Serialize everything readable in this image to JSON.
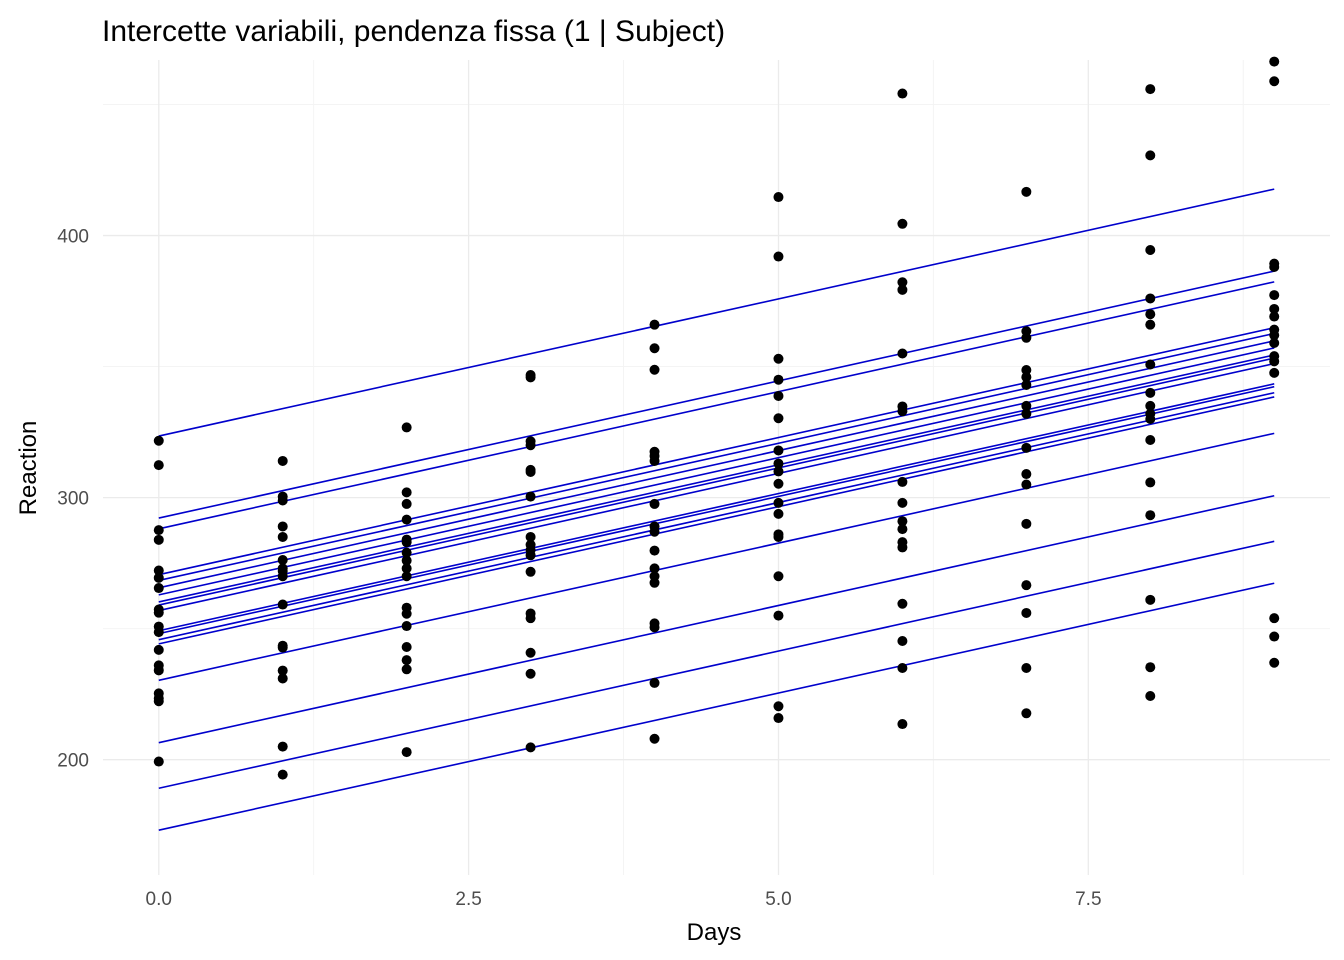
{
  "chart_data": {
    "type": "scatter",
    "title": "Intercette variabili, pendenza fissa (1 | Subject)",
    "xlabel": "Days",
    "ylabel": "Reaction",
    "xlim": [
      -0.45,
      9.45
    ],
    "ylim": [
      156,
      467
    ],
    "x_ticks": [
      0,
      2.5,
      5,
      7.5
    ],
    "x_tick_labels": [
      "0.0",
      "2.5",
      "5.0",
      "7.5"
    ],
    "y_ticks": [
      200,
      300,
      400
    ],
    "y_tick_labels": [
      "200",
      "300",
      "400"
    ],
    "grid": true,
    "legend": "none",
    "colors": {
      "points": "#000000",
      "lines": "#0000cc",
      "grid": "#ebebeb"
    },
    "slope": 10.47,
    "intercepts": [
      323.5,
      292.2,
      288.1,
      270.6,
      268.4,
      265.6,
      262.9,
      260.2,
      259.0,
      256.9,
      249.2,
      248.1,
      245.8,
      244.2,
      230.3,
      206.5,
      189.1,
      173.1
    ],
    "points": [
      [
        0,
        321.7
      ],
      [
        0,
        312.4
      ],
      [
        0,
        287.6
      ],
      [
        0,
        283.9
      ],
      [
        0,
        272.2
      ],
      [
        0,
        269.4
      ],
      [
        0,
        265.5
      ],
      [
        0,
        257.3
      ],
      [
        0,
        256.1
      ],
      [
        0,
        250.8
      ],
      [
        0,
        248.7
      ],
      [
        0,
        241.9
      ],
      [
        0,
        236.0
      ],
      [
        0,
        234.1
      ],
      [
        0,
        225.3
      ],
      [
        0,
        223.4
      ],
      [
        0,
        222.3
      ],
      [
        0,
        199.3
      ],
      [
        1,
        314.0
      ],
      [
        1,
        300.4
      ],
      [
        1,
        298.9
      ],
      [
        1,
        289.0
      ],
      [
        1,
        285.0
      ],
      [
        1,
        276.2
      ],
      [
        1,
        273.0
      ],
      [
        1,
        272.0
      ],
      [
        1,
        270.0
      ],
      [
        1,
        259.2
      ],
      [
        1,
        243.5
      ],
      [
        1,
        242.8
      ],
      [
        1,
        234.0
      ],
      [
        1,
        231.0
      ],
      [
        1,
        205.0
      ],
      [
        1,
        194.3
      ],
      [
        2,
        326.8
      ],
      [
        2,
        302.0
      ],
      [
        2,
        297.6
      ],
      [
        2,
        291.6
      ],
      [
        2,
        284.0
      ],
      [
        2,
        283.0
      ],
      [
        2,
        279.0
      ],
      [
        2,
        276.0
      ],
      [
        2,
        273.0
      ],
      [
        2,
        270.0
      ],
      [
        2,
        258.0
      ],
      [
        2,
        255.7
      ],
      [
        2,
        251.0
      ],
      [
        2,
        243.0
      ],
      [
        2,
        238.0
      ],
      [
        2,
        234.5
      ],
      [
        2,
        202.9
      ],
      [
        3,
        346.8
      ],
      [
        3,
        345.9
      ],
      [
        3,
        321.5
      ],
      [
        3,
        320.0
      ],
      [
        3,
        310.6
      ],
      [
        3,
        309.8
      ],
      [
        3,
        300.4
      ],
      [
        3,
        285.0
      ],
      [
        3,
        282.0
      ],
      [
        3,
        280.0
      ],
      [
        3,
        278.0
      ],
      [
        3,
        271.7
      ],
      [
        3,
        255.8
      ],
      [
        3,
        254.0
      ],
      [
        3,
        240.8
      ],
      [
        3,
        232.8
      ],
      [
        3,
        204.7
      ],
      [
        4,
        366.0
      ],
      [
        4,
        357.0
      ],
      [
        4,
        348.8
      ],
      [
        4,
        317.5
      ],
      [
        4,
        315.9
      ],
      [
        4,
        314.0
      ],
      [
        4,
        297.6
      ],
      [
        4,
        289.0
      ],
      [
        4,
        287.0
      ],
      [
        4,
        279.8
      ],
      [
        4,
        273.0
      ],
      [
        4,
        270.0
      ],
      [
        4,
        267.5
      ],
      [
        4,
        252.0
      ],
      [
        4,
        250.5
      ],
      [
        4,
        229.3
      ],
      [
        4,
        208.0
      ],
      [
        5,
        414.7
      ],
      [
        5,
        392.0
      ],
      [
        5,
        353.0
      ],
      [
        5,
        345.0
      ],
      [
        5,
        338.8
      ],
      [
        5,
        330.3
      ],
      [
        5,
        318.0
      ],
      [
        5,
        313.0
      ],
      [
        5,
        310.0
      ],
      [
        5,
        305.3
      ],
      [
        5,
        298.0
      ],
      [
        5,
        293.8
      ],
      [
        5,
        286.0
      ],
      [
        5,
        285.0
      ],
      [
        5,
        270.0
      ],
      [
        5,
        255.0
      ],
      [
        5,
        220.4
      ],
      [
        5,
        215.9
      ],
      [
        6,
        454.2
      ],
      [
        6,
        404.5
      ],
      [
        6,
        382.2
      ],
      [
        6,
        379.3
      ],
      [
        6,
        355.0
      ],
      [
        6,
        334.8
      ],
      [
        6,
        333.0
      ],
      [
        6,
        306.0
      ],
      [
        6,
        298.0
      ],
      [
        6,
        291.0
      ],
      [
        6,
        288.0
      ],
      [
        6,
        283.0
      ],
      [
        6,
        281.0
      ],
      [
        6,
        259.5
      ],
      [
        6,
        245.3
      ],
      [
        6,
        235.0
      ],
      [
        6,
        213.6
      ],
      [
        7,
        416.7
      ],
      [
        7,
        363.5
      ],
      [
        7,
        361.0
      ],
      [
        7,
        348.7
      ],
      [
        7,
        346.0
      ],
      [
        7,
        343.0
      ],
      [
        7,
        335.0
      ],
      [
        7,
        332.0
      ],
      [
        7,
        319.0
      ],
      [
        7,
        309.0
      ],
      [
        7,
        305.0
      ],
      [
        7,
        290.0
      ],
      [
        7,
        266.6
      ],
      [
        7,
        256.0
      ],
      [
        7,
        235.0
      ],
      [
        7,
        217.7
      ],
      [
        8,
        455.9
      ],
      [
        8,
        430.6
      ],
      [
        8,
        394.5
      ],
      [
        8,
        376.0
      ],
      [
        8,
        370.0
      ],
      [
        8,
        366.0
      ],
      [
        8,
        350.8
      ],
      [
        8,
        340.0
      ],
      [
        8,
        335.0
      ],
      [
        8,
        332.0
      ],
      [
        8,
        330.0
      ],
      [
        8,
        322.0
      ],
      [
        8,
        305.8
      ],
      [
        8,
        293.3
      ],
      [
        8,
        261.0
      ],
      [
        8,
        235.3
      ],
      [
        8,
        224.3
      ],
      [
        9,
        466.4
      ],
      [
        9,
        458.9
      ],
      [
        9,
        389.3
      ],
      [
        9,
        388.0
      ],
      [
        9,
        377.3
      ],
      [
        9,
        372.0
      ],
      [
        9,
        369.1
      ],
      [
        9,
        364.1
      ],
      [
        9,
        362.0
      ],
      [
        9,
        359.0
      ],
      [
        9,
        354.0
      ],
      [
        9,
        352.0
      ],
      [
        9,
        347.6
      ],
      [
        9,
        254.0
      ],
      [
        9,
        247.0
      ],
      [
        9,
        237.0
      ]
    ]
  }
}
